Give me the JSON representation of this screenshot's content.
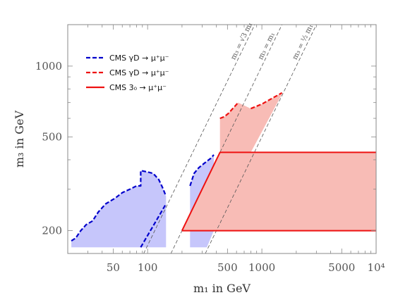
{
  "chart_data": {
    "type": "area",
    "title": "",
    "xlabel": "m₁ in GeV",
    "ylabel": "m₃ in GeV",
    "x_scale": "log",
    "y_scale": "log",
    "xlim": [
      20,
      10000
    ],
    "ylim": [
      160,
      1500
    ],
    "x_ticks": [
      {
        "value": 50,
        "label": "50"
      },
      {
        "value": 100,
        "label": "100"
      },
      {
        "value": 500,
        "label": "500"
      },
      {
        "value": 1000,
        "label": "1000"
      },
      {
        "value": 5000,
        "label": "5000"
      },
      {
        "value": 10000,
        "label": "10⁴"
      }
    ],
    "y_ticks": [
      {
        "value": 200,
        "label": "200"
      },
      {
        "value": 500,
        "label": "500"
      },
      {
        "value": 1000,
        "label": "1000"
      }
    ],
    "grid": false,
    "legend_position": "top-left",
    "legend": [
      {
        "label": "CMS γD → μ⁺μ⁻",
        "color": "#0000cc",
        "style": "dashed"
      },
      {
        "label": "CMS γD → μ⁺μ⁻",
        "color": "#ee1111",
        "style": "dashed"
      },
      {
        "label": "CMS 3₀ → μ⁺μ⁻",
        "color": "#ee1111",
        "style": "solid"
      }
    ],
    "reference_lines": [
      {
        "label": "m₃ = √3 m₁",
        "factor": 1.732
      },
      {
        "label": "m₃ = m₁",
        "factor": 1.0
      },
      {
        "label": "m₃ = ½ m₁",
        "factor": 0.5
      }
    ],
    "regions": [
      {
        "name": "blue-region-left",
        "color": "#c6c6fb",
        "boundary": [
          [
            21.5,
            181
          ],
          [
            23.5,
            186
          ],
          [
            26,
            200
          ],
          [
            29,
            212
          ],
          [
            33,
            220
          ],
          [
            37,
            240
          ],
          [
            43,
            260
          ],
          [
            52,
            275
          ],
          [
            60,
            290
          ],
          [
            70,
            300
          ],
          [
            80,
            310
          ],
          [
            87,
            310
          ],
          [
            87,
            360
          ],
          [
            100,
            355
          ],
          [
            112,
            350
          ],
          [
            125,
            330
          ],
          [
            135,
            305
          ],
          [
            145,
            280
          ],
          [
            145,
            170
          ],
          [
            21.5,
            170
          ]
        ]
      },
      {
        "name": "blue-region-right",
        "color": "#c6c6fb",
        "boundary": [
          [
            235,
            170
          ],
          [
            235,
            310
          ],
          [
            255,
            350
          ],
          [
            280,
            370
          ],
          [
            310,
            385
          ],
          [
            355,
            405
          ],
          [
            380,
            420
          ],
          [
            380,
            200
          ],
          [
            330,
            170
          ]
        ]
      },
      {
        "name": "red-region",
        "color": "#f8bcb6",
        "boundary": [
          [
            200,
            200
          ],
          [
            430,
            430
          ],
          [
            430,
            600
          ],
          [
            470,
            610
          ],
          [
            510,
            630
          ],
          [
            620,
            700
          ],
          [
            800,
            660
          ],
          [
            1000,
            690
          ],
          [
            1500,
            770
          ],
          [
            1500,
            760
          ],
          [
            800,
            430
          ],
          [
            10000,
            430
          ],
          [
            10000,
            200
          ]
        ]
      }
    ],
    "series": [
      {
        "name": "CMS γD → μ⁺μ⁻",
        "color": "#0000cc",
        "style": "dashed",
        "segments": [
          [
            [
              21.5,
              181
            ],
            [
              23.5,
              186
            ],
            [
              26,
              200
            ],
            [
              29,
              212
            ],
            [
              33,
              220
            ],
            [
              37,
              240
            ],
            [
              43,
              260
            ],
            [
              52,
              275
            ],
            [
              60,
              290
            ],
            [
              70,
              300
            ],
            [
              80,
              310
            ],
            [
              87,
              310
            ],
            [
              87,
              360
            ],
            [
              100,
              355
            ],
            [
              112,
              350
            ],
            [
              125,
              330
            ],
            [
              135,
              305
            ],
            [
              145,
              280
            ]
          ],
          [
            [
              87,
              170
            ],
            [
              145,
              260
            ]
          ],
          [
            [
              235,
              310
            ],
            [
              255,
              350
            ],
            [
              280,
              370
            ],
            [
              310,
              385
            ],
            [
              355,
              405
            ],
            [
              380,
              420
            ]
          ]
        ]
      },
      {
        "name": "CMS γD → μ⁺μ⁻",
        "color": "#ee1111",
        "style": "dashed",
        "segments": [
          [
            [
              430,
              600
            ],
            [
              470,
              610
            ],
            [
              510,
              630
            ],
            [
              620,
              700
            ]
          ],
          [
            [
              800,
              660
            ],
            [
              1000,
              690
            ],
            [
              1500,
              770
            ]
          ]
        ]
      },
      {
        "name": "CMS 3₀ → μ⁺μ⁻",
        "color": "#ee1111",
        "style": "solid",
        "segments": [
          [
            [
              200,
              200
            ],
            [
              430,
              430
            ],
            [
              10000,
              430
            ]
          ],
          [
            [
              200,
              200
            ],
            [
              10000,
              200
            ]
          ]
        ]
      }
    ]
  }
}
